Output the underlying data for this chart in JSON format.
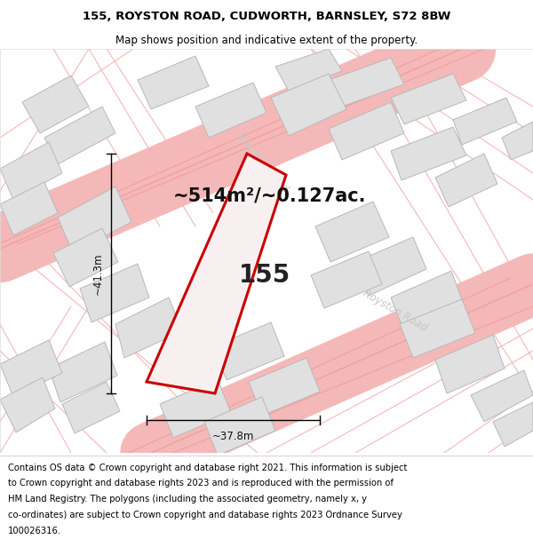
{
  "title_line1": "155, ROYSTON ROAD, CUDWORTH, BARNSLEY, S72 8BW",
  "title_line2": "Map shows position and indicative extent of the property.",
  "area_label": "~514m²/~0.127ac.",
  "width_label": "~37.8m",
  "height_label": "~41.3m",
  "plot_number": "155",
  "bg_color": "#ffffff",
  "map_bg": "#faf5f5",
  "road_color": "#f5b8b8",
  "road_color2": "#f0a0a0",
  "building_fill": "#e0e0e0",
  "building_edge": "#b8b8b8",
  "plot_fill": "#f5f0f0",
  "plot_edge": "#cc0000",
  "road_label_color": "#c8c8c8",
  "title_fontsize": 9.5,
  "subtitle_fontsize": 8.5,
  "area_fontsize": 15,
  "dim_fontsize": 8.5,
  "plot_num_fontsize": 20,
  "footer_fontsize": 7.2,
  "footer_lines": [
    "Contains OS data © Crown copyright and database right 2021. This information is subject",
    "to Crown copyright and database rights 2023 and is reproduced with the permission of",
    "HM Land Registry. The polygons (including the associated geometry, namely x, y",
    "co-ordinates) are subject to Crown copyright and database rights 2023 Ordnance Survey",
    "100026316."
  ]
}
